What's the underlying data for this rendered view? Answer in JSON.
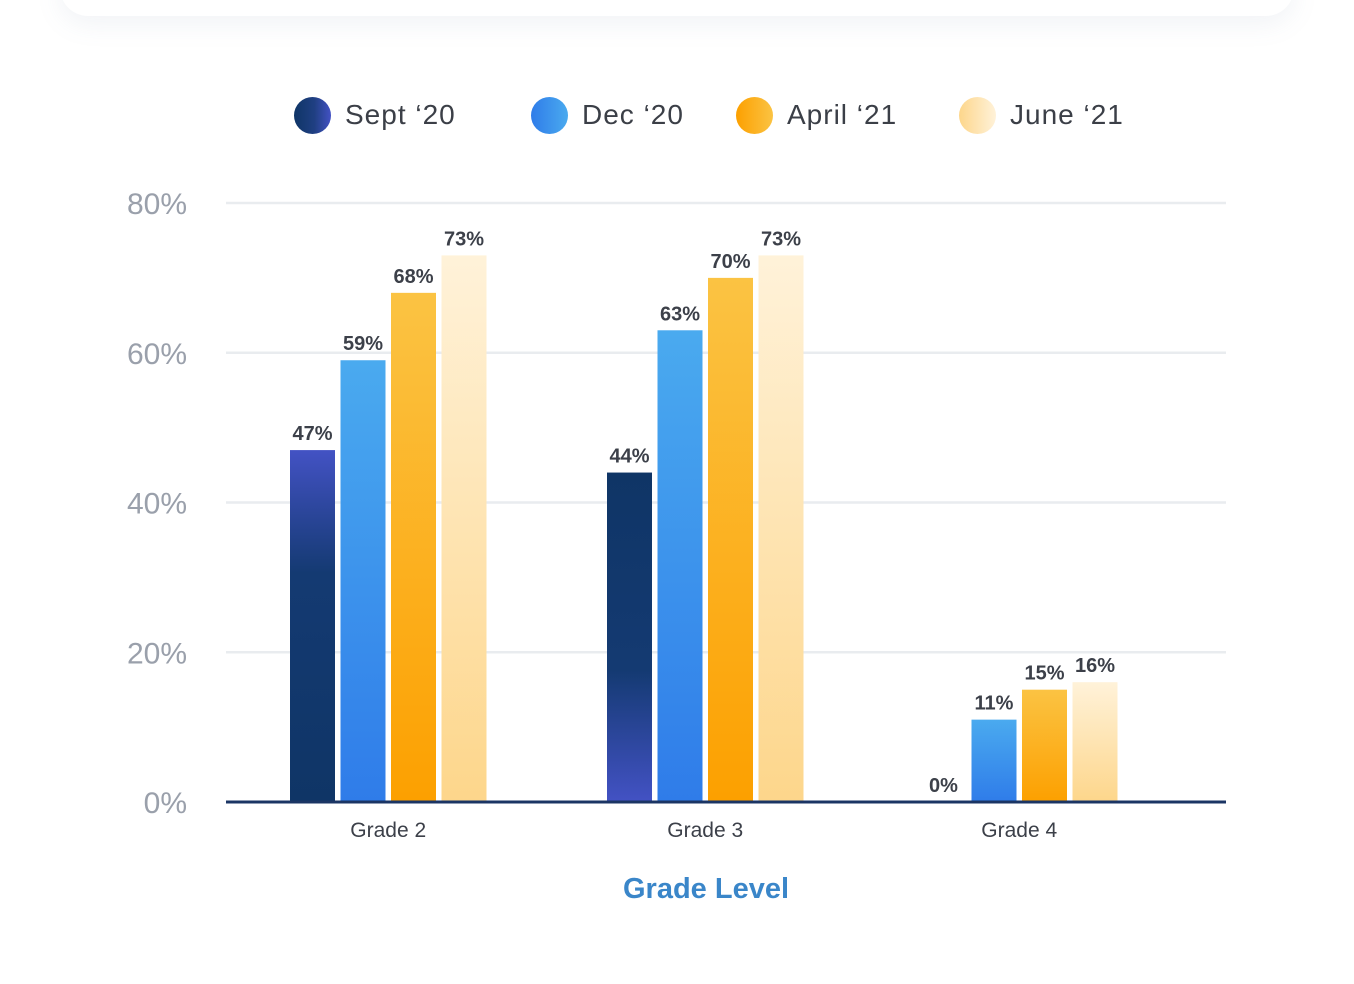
{
  "chart_data": {
    "type": "bar",
    "title": "",
    "xlabel": "Grade Level",
    "ylabel": "",
    "categories": [
      "Grade 2",
      "Grade 3",
      "Grade 4"
    ],
    "ylim": [
      0,
      80
    ],
    "yticks": [
      0,
      20,
      40,
      60,
      80
    ],
    "ytick_labels": [
      "0%",
      "20%",
      "40%",
      "60%",
      "80%"
    ],
    "value_suffix": "%",
    "grid": true,
    "legend_position": "top",
    "series": [
      {
        "name": "Sept ‘20",
        "values": [
          47,
          44,
          0
        ],
        "color_top": "#4352c4",
        "color_bottom": "#0f3566",
        "color_key": "navy"
      },
      {
        "name": "Dec ‘20",
        "values": [
          59,
          63,
          11
        ],
        "color_top": "#4aaaef",
        "color_bottom": "#2f7ce9",
        "color_key": "blue"
      },
      {
        "name": "April ‘21",
        "values": [
          68,
          70,
          15
        ],
        "color_top": "#fbc343",
        "color_bottom": "#fca000",
        "color_key": "orange"
      },
      {
        "name": "June ‘21",
        "values": [
          73,
          73,
          16
        ],
        "color_top": "#fff2d9",
        "color_bottom": "#fdd68b",
        "color_key": "cream"
      }
    ],
    "colors": {
      "axis": "#1b3564",
      "grid": "#e9ecef",
      "ytick_text": "#9aa0ab",
      "xtick_text": "#3c4049",
      "xlabel_text": "#3a86c9",
      "data_label_text": "#3c4049"
    }
  }
}
